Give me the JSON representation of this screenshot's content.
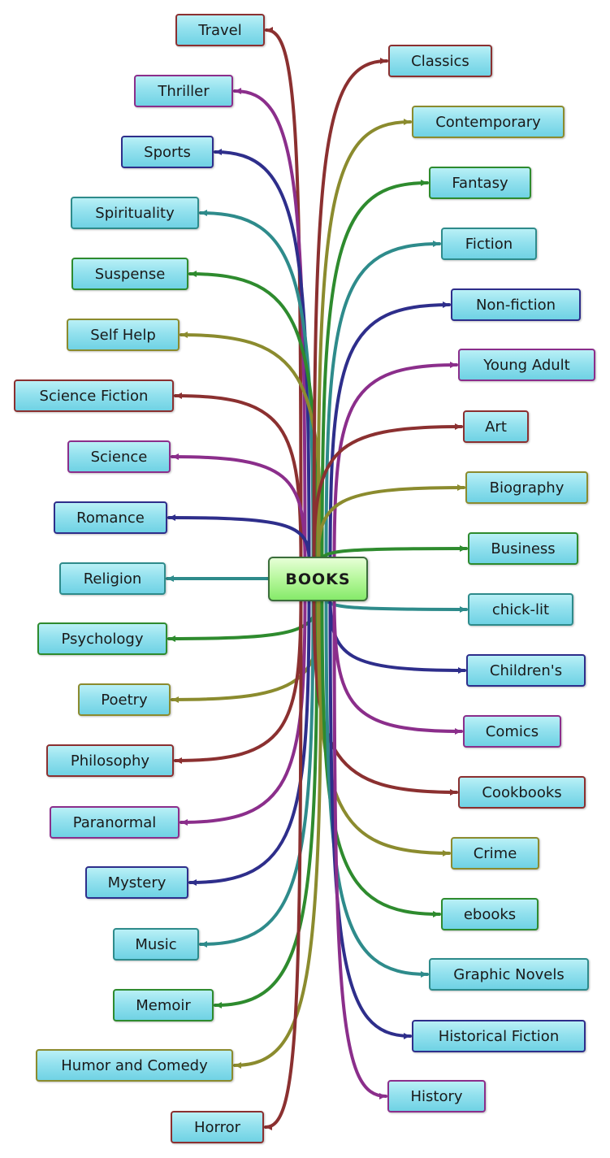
{
  "center": {
    "label": "BOOKS"
  },
  "colors": {
    "red": "#8b3030",
    "olive": "#8b8b2e",
    "green": "#2e8b2e",
    "teal": "#2e8b8b",
    "navy": "#2e2e8b",
    "purple": "#8b2e8b"
  },
  "branches": {
    "left": [
      {
        "label": "Travel",
        "color": "red"
      },
      {
        "label": "Thriller",
        "color": "purple"
      },
      {
        "label": "Sports",
        "color": "navy"
      },
      {
        "label": "Spirituality",
        "color": "teal"
      },
      {
        "label": "Suspense",
        "color": "green"
      },
      {
        "label": "Self Help",
        "color": "olive"
      },
      {
        "label": "Science Fiction",
        "color": "red"
      },
      {
        "label": "Science",
        "color": "purple"
      },
      {
        "label": "Romance",
        "color": "navy"
      },
      {
        "label": "Religion",
        "color": "teal"
      },
      {
        "label": "Psychology",
        "color": "green"
      },
      {
        "label": "Poetry",
        "color": "olive"
      },
      {
        "label": "Philosophy",
        "color": "red"
      },
      {
        "label": "Paranormal",
        "color": "purple"
      },
      {
        "label": "Mystery",
        "color": "navy"
      },
      {
        "label": "Music",
        "color": "teal"
      },
      {
        "label": "Memoir",
        "color": "green"
      },
      {
        "label": "Humor and Comedy",
        "color": "olive"
      },
      {
        "label": "Horror",
        "color": "red"
      }
    ],
    "right": [
      {
        "label": "Classics",
        "color": "red"
      },
      {
        "label": "Contemporary",
        "color": "olive"
      },
      {
        "label": "Fantasy",
        "color": "green"
      },
      {
        "label": "Fiction",
        "color": "teal"
      },
      {
        "label": "Non-fiction",
        "color": "navy"
      },
      {
        "label": "Young Adult",
        "color": "purple"
      },
      {
        "label": "Art",
        "color": "red"
      },
      {
        "label": "Biography",
        "color": "olive"
      },
      {
        "label": "Business",
        "color": "green"
      },
      {
        "label": "chick-lit",
        "color": "teal"
      },
      {
        "label": "Children's",
        "color": "navy"
      },
      {
        "label": "Comics",
        "color": "purple"
      },
      {
        "label": "Cookbooks",
        "color": "red"
      },
      {
        "label": "Crime",
        "color": "olive"
      },
      {
        "label": "ebooks",
        "color": "green"
      },
      {
        "label": "Graphic Novels",
        "color": "teal"
      },
      {
        "label": "Historical Fiction",
        "color": "navy"
      },
      {
        "label": "History",
        "color": "purple"
      }
    ]
  }
}
